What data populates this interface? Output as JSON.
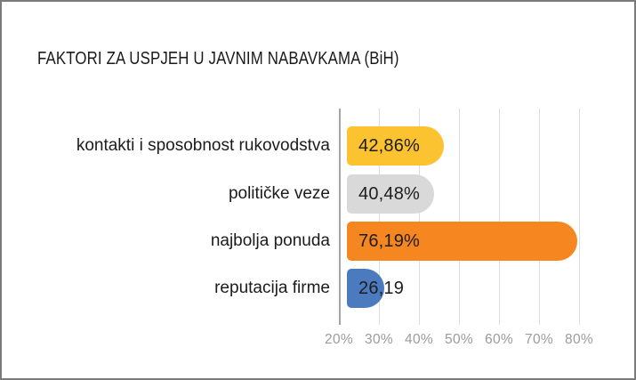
{
  "title": "FAKTORI ZA USPJEH U JAVNIM NABAVKAMA (BiH)",
  "frame": {
    "background": "#ffffff",
    "border_color": "#7b7b7b"
  },
  "chart_data": {
    "type": "bar",
    "orientation": "horizontal",
    "title": "FAKTORI ZA USPJEH U JAVNIM NABAVKAMA (BiH)",
    "categories": [
      "kontakti i sposobnost rukovodstva",
      "političke veze",
      "najbolja ponuda",
      "reputacija firme"
    ],
    "values": [
      42.86,
      40.48,
      76.19,
      26.19
    ],
    "value_labels": [
      "42,86%",
      "40,48%",
      "76,19%",
      "26,19"
    ],
    "bar_colors": [
      "#fcc331",
      "#d9d9d9",
      "#f6861f",
      "#4c7abf"
    ],
    "x_tick_labels": [
      "20%",
      "30%",
      "40%",
      "50%",
      "60%",
      "70%",
      "80%"
    ],
    "x_tick_values": [
      20,
      30,
      40,
      50,
      60,
      70,
      80
    ],
    "xlim": [
      20,
      85
    ],
    "grid": "vertical",
    "legend": "none",
    "xlabel": "",
    "ylabel": "",
    "colors": {
      "axis_line": "#a5a5a5",
      "gridline": "#dcdcdc",
      "tick_label": "#9b9b9b",
      "value_label": "#1d1d1d",
      "category_label": "#1b1b1b",
      "title": "#1a1a1a"
    }
  }
}
